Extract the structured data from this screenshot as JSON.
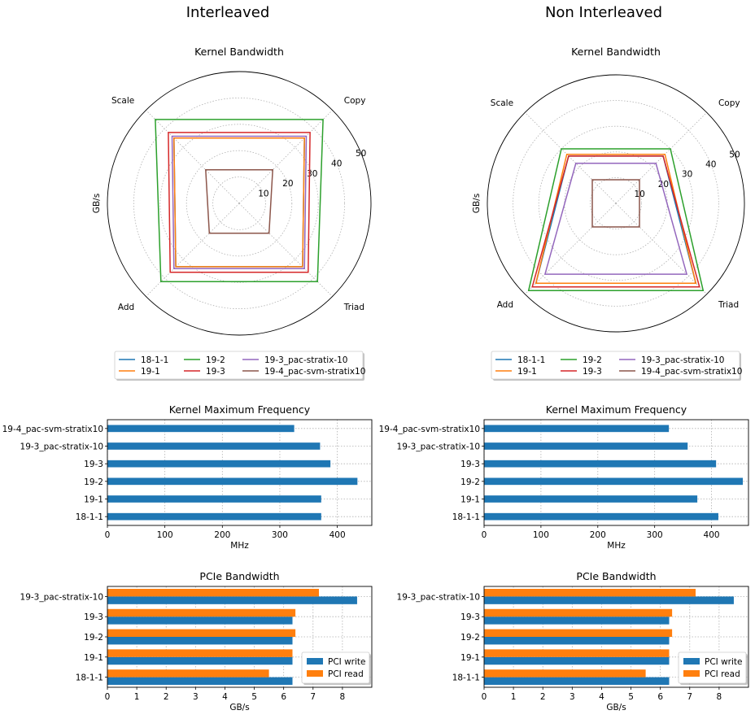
{
  "colors": {
    "18-1-1": "#1f77b4",
    "19-1": "#ff7f0e",
    "19-2": "#2ca02c",
    "19-3": "#d62728",
    "19-3_pac-stratix-10": "#9467bd",
    "19-4_pac-svm-stratix10": "#8c564b",
    "pci_write": "#1f77b4",
    "pci_read": "#ff7f0e"
  },
  "chart_data": [
    {
      "type": "radar",
      "supertitle": "Interleaved",
      "title": "Kernel Bandwidth",
      "ylabel": "GB/s",
      "axes": [
        "Copy",
        "Scale",
        "Add",
        "Triad"
      ],
      "rlim": [
        0,
        50
      ],
      "rticks": [
        "10",
        "20",
        "30",
        "40",
        "50"
      ],
      "legend_title": "",
      "legend_position": "below",
      "series": [
        {
          "name": "18-1-1",
          "values": [
            35,
            35,
            34,
            34
          ]
        },
        {
          "name": "19-1",
          "values": [
            35,
            35,
            34,
            34
          ]
        },
        {
          "name": "19-2",
          "values": [
            45,
            45,
            42,
            42
          ]
        },
        {
          "name": "19-3",
          "values": [
            38,
            38,
            37,
            37
          ]
        },
        {
          "name": "19-3_pac-stratix-10",
          "values": [
            36,
            36,
            35,
            35
          ]
        },
        {
          "name": "19-4_pac-svm-stratix10",
          "values": [
            18,
            18,
            16,
            16
          ]
        }
      ]
    },
    {
      "type": "radar",
      "supertitle": "Non Interleaved",
      "title": "Kernel Bandwidth",
      "ylabel": "GB/s",
      "axes": [
        "Copy",
        "Scale",
        "Add",
        "Triad"
      ],
      "rlim": [
        0,
        50
      ],
      "rticks": [
        "10",
        "20",
        "30",
        "40",
        "50"
      ],
      "legend_position": "below",
      "series": [
        {
          "name": "18-1-1",
          "values": [
            26,
            26,
            44,
            44
          ]
        },
        {
          "name": "19-1",
          "values": [
            27,
            27,
            44,
            44
          ]
        },
        {
          "name": "19-2",
          "values": [
            30,
            30,
            48,
            48
          ]
        },
        {
          "name": "19-3",
          "values": [
            26,
            26,
            46,
            46
          ]
        },
        {
          "name": "19-3_pac-stratix-10",
          "values": [
            22,
            22,
            39,
            39
          ]
        },
        {
          "name": "19-4_pac-svm-stratix10",
          "values": [
            13,
            13,
            13,
            13
          ]
        }
      ]
    },
    {
      "type": "bar",
      "orientation": "horizontal",
      "title": "Kernel Maximum Frequency",
      "xlabel": "MHz",
      "xlim": [
        0,
        460
      ],
      "xticks": [
        0,
        100,
        200,
        300,
        400
      ],
      "categories": [
        "18-1-1",
        "19-1",
        "19-2",
        "19-3",
        "19-3_pac-stratix-10",
        "19-4_pac-svm-stratix10"
      ],
      "series": [
        {
          "values": [
            372,
            372,
            435,
            388,
            370,
            325
          ]
        }
      ]
    },
    {
      "type": "bar",
      "orientation": "horizontal",
      "title": "Kernel Maximum Frequency",
      "xlabel": "MHz",
      "xlim": [
        0,
        465
      ],
      "xticks": [
        0,
        100,
        200,
        300,
        400
      ],
      "categories": [
        "18-1-1",
        "19-1",
        "19-2",
        "19-3",
        "19-3_pac-stratix-10",
        "19-4_pac-svm-stratix10"
      ],
      "series": [
        {
          "values": [
            412,
            375,
            455,
            408,
            358,
            325
          ]
        }
      ]
    },
    {
      "type": "bar",
      "orientation": "horizontal",
      "title": "PCIe Bandwidth",
      "xlabel": "GB/s",
      "xlim": [
        0,
        9
      ],
      "xticks": [
        0,
        1,
        2,
        3,
        4,
        5,
        6,
        7,
        8
      ],
      "categories": [
        "18-1-1",
        "19-1",
        "19-2",
        "19-3",
        "19-3_pac-stratix-10"
      ],
      "legend_position": "lower right",
      "series": [
        {
          "name": "PCI write",
          "values": [
            6.3,
            6.3,
            6.3,
            6.3,
            8.5
          ]
        },
        {
          "name": "PCI read",
          "values": [
            5.5,
            6.3,
            6.4,
            6.4,
            7.2
          ]
        }
      ]
    },
    {
      "type": "bar",
      "orientation": "horizontal",
      "title": "PCIe Bandwidth",
      "xlabel": "GB/s",
      "xlim": [
        0,
        9
      ],
      "xticks": [
        0,
        1,
        2,
        3,
        4,
        5,
        6,
        7,
        8
      ],
      "categories": [
        "18-1-1",
        "19-1",
        "19-2",
        "19-3",
        "19-3_pac-stratix-10"
      ],
      "legend_position": "lower right",
      "series": [
        {
          "name": "PCI write",
          "values": [
            6.3,
            6.3,
            6.3,
            6.3,
            8.5
          ]
        },
        {
          "name": "PCI read",
          "values": [
            5.5,
            6.3,
            6.4,
            6.4,
            7.2
          ]
        }
      ]
    }
  ]
}
